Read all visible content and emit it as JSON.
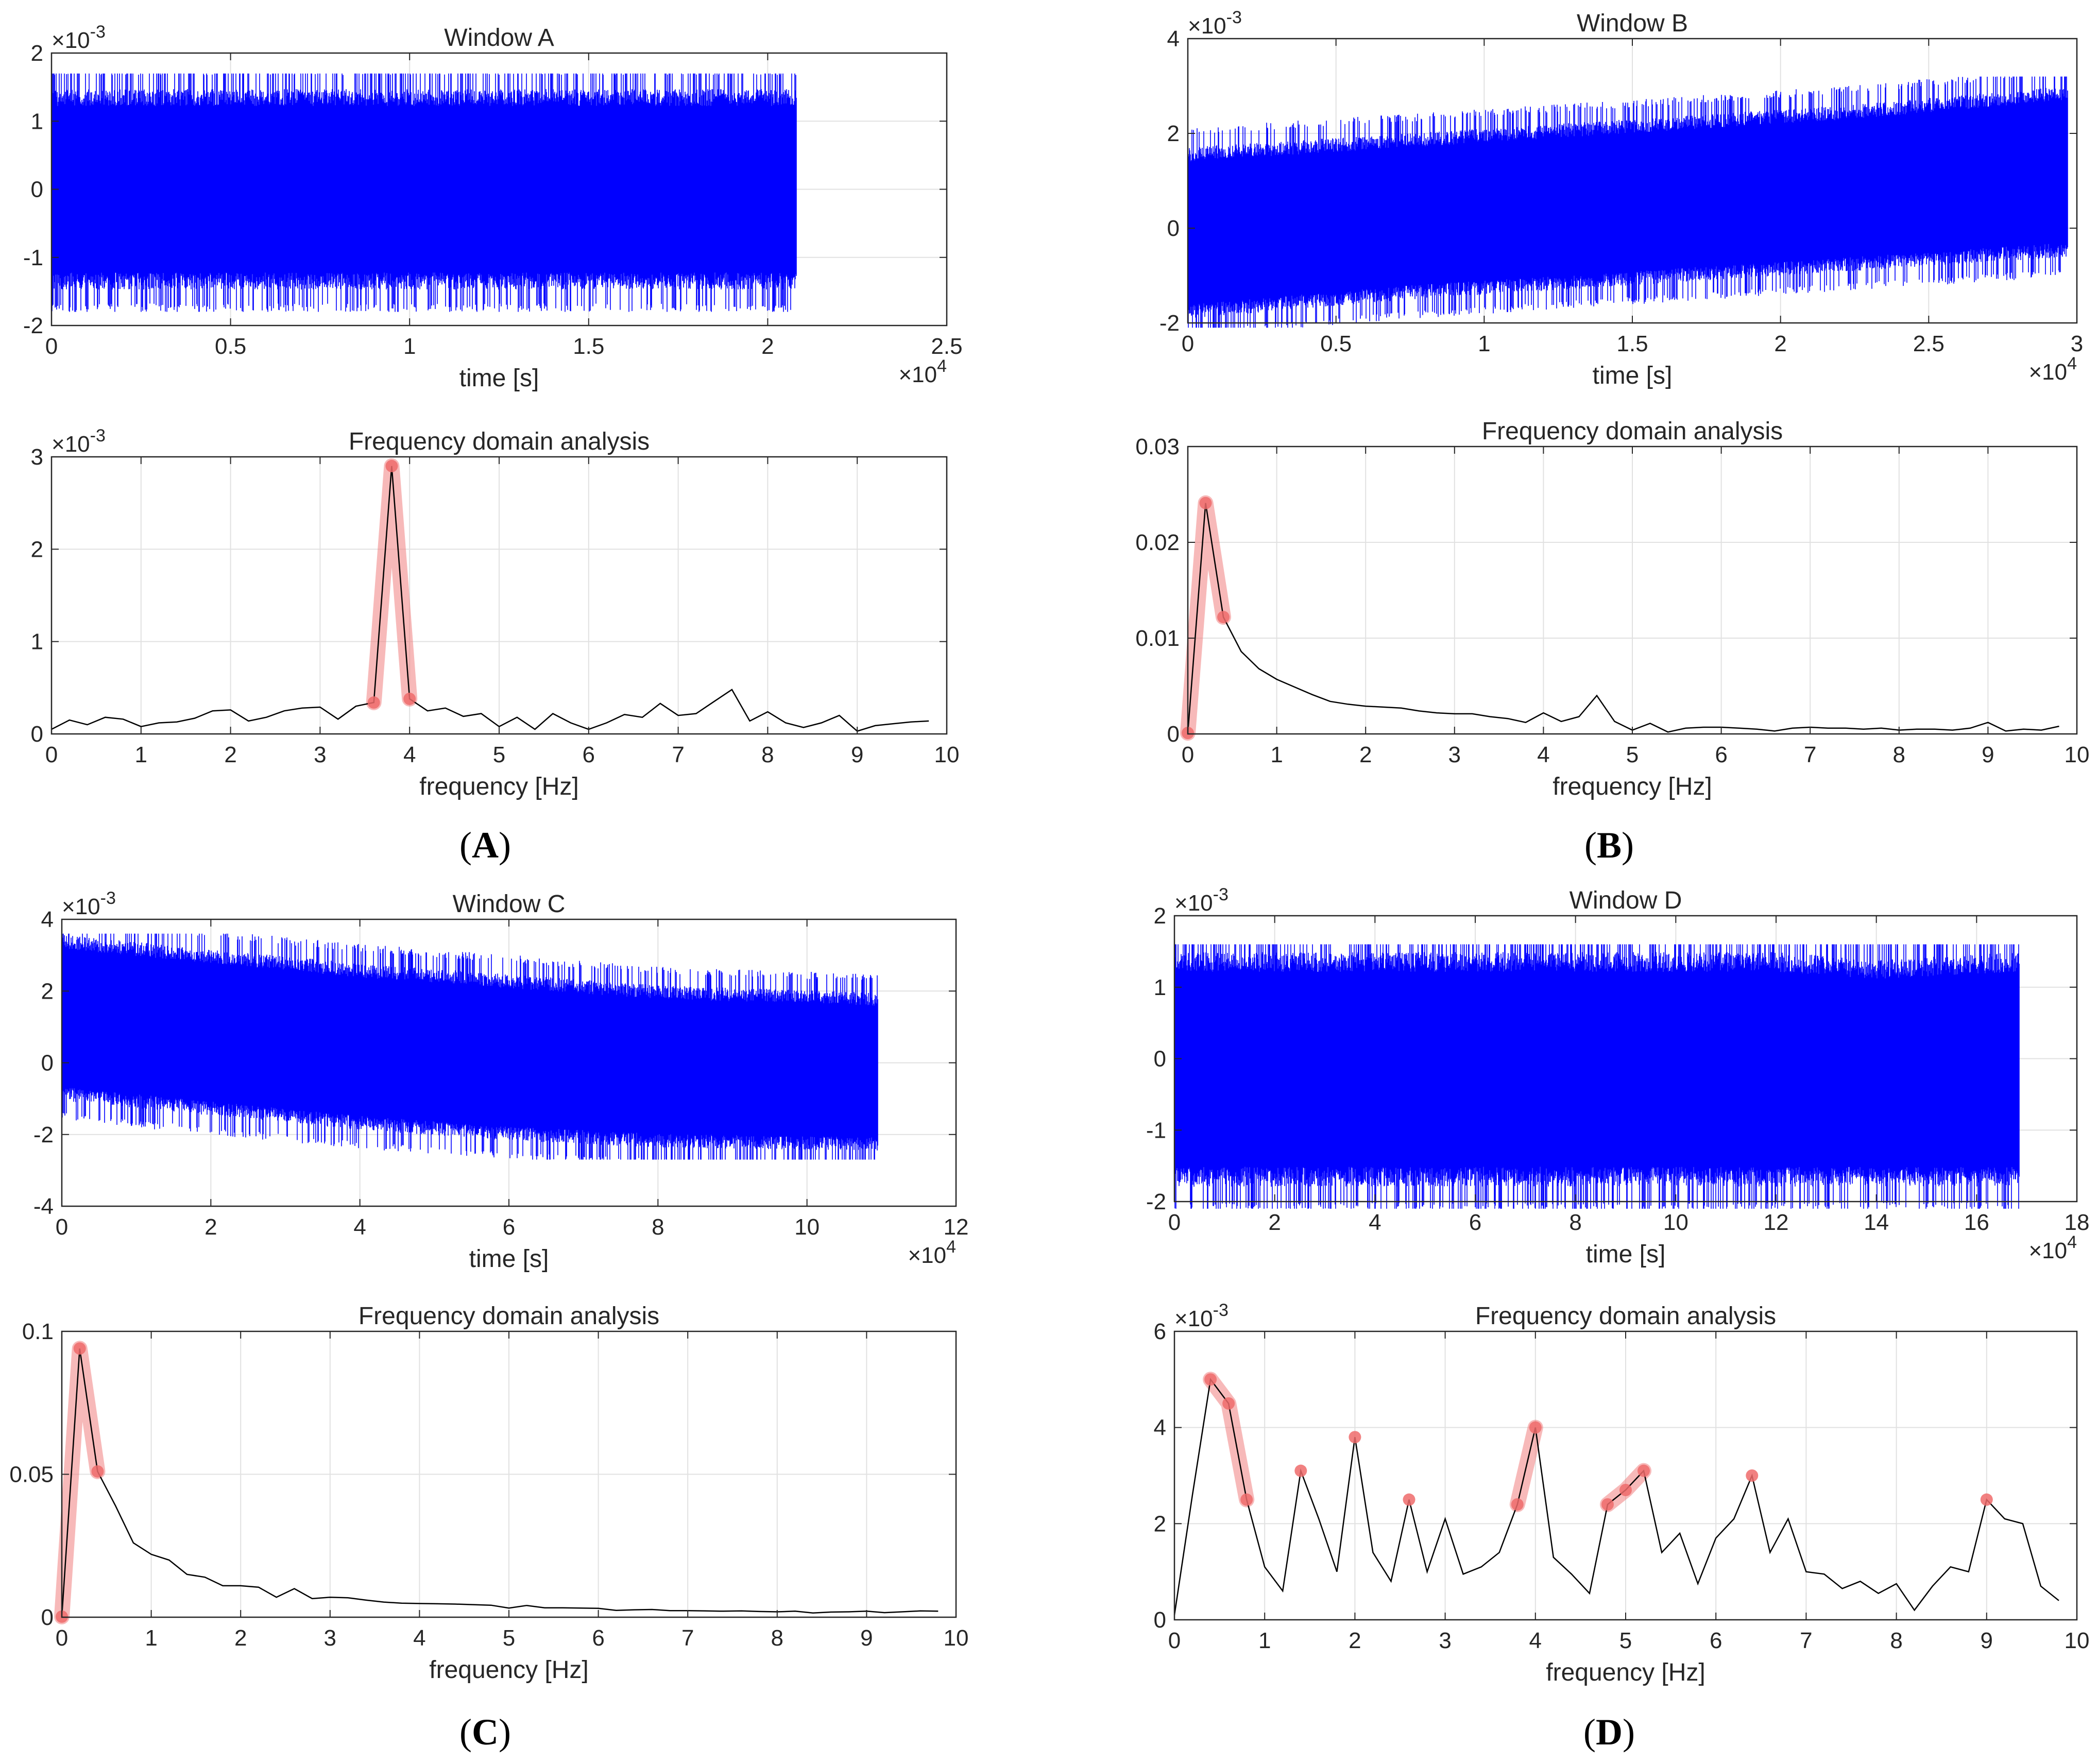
{
  "panels": [
    {
      "label": "A",
      "time_title": "Window A",
      "freq_title": "Frequency domain analysis"
    },
    {
      "label": "B",
      "time_title": "Window B",
      "freq_title": "Frequency domain analysis"
    },
    {
      "label": "C",
      "time_title": "Window C",
      "freq_title": "Frequency domain analysis"
    },
    {
      "label": "D",
      "time_title": "Window D",
      "freq_title": "Frequency domain analysis"
    }
  ],
  "colors": {
    "signal": "#0000ff",
    "spectrum": "#000000",
    "highlight_fill": "#f08080",
    "highlight_point": "#ee6b6b",
    "grid": "#e1e1e1",
    "axis": "#262626"
  },
  "chart_data": [
    {
      "panel": "A",
      "type": "area",
      "title": "Window A",
      "xlabel": "time [s]",
      "ylabel": "",
      "xlim": [
        0,
        25000
      ],
      "ylim": [
        -0.002,
        0.002
      ],
      "xticks": [
        0,
        5000,
        10000,
        15000,
        20000,
        25000
      ],
      "xtick_labels": [
        "0",
        "0.5",
        "1",
        "1.5",
        "2",
        "2.5"
      ],
      "yticks": [
        -0.002,
        -0.001,
        0,
        0.001,
        0.002
      ],
      "ytick_labels": [
        "-2",
        "-1",
        "0",
        "1",
        "2"
      ],
      "x_exponent": "×10^4",
      "y_exponent": "×10^-3",
      "signal_end": 20800,
      "envelope": {
        "x": [
          0,
          5000,
          10000,
          15000,
          20800
        ],
        "upper": [
          0.0013,
          0.0013,
          0.0013,
          0.0013,
          0.0013
        ],
        "lower": [
          -0.0013,
          -0.0013,
          -0.0013,
          -0.0013,
          -0.0013
        ],
        "peak_max": 0.0017,
        "peak_min": -0.0018
      }
    },
    {
      "panel": "A",
      "type": "line",
      "title": "Frequency domain analysis",
      "xlabel": "frequency [Hz]",
      "ylabel": "",
      "xlim": [
        0,
        10
      ],
      "ylim": [
        0,
        0.003
      ],
      "xticks": [
        0,
        1,
        2,
        3,
        4,
        5,
        6,
        7,
        8,
        9,
        10
      ],
      "xtick_labels": [
        "0",
        "1",
        "2",
        "3",
        "4",
        "5",
        "6",
        "7",
        "8",
        "9",
        "10"
      ],
      "yticks": [
        0,
        0.001,
        0.002,
        0.003
      ],
      "ytick_labels": [
        "0",
        "1",
        "2",
        "3"
      ],
      "y_exponent": "×10^-3",
      "x": [
        0,
        0.2,
        0.4,
        0.6,
        0.8,
        1.0,
        1.2,
        1.4,
        1.6,
        1.8,
        2.0,
        2.2,
        2.4,
        2.6,
        2.8,
        3.0,
        3.2,
        3.4,
        3.6,
        3.8,
        4.0,
        4.2,
        4.4,
        4.6,
        4.8,
        5.0,
        5.2,
        5.4,
        5.6,
        5.8,
        6.0,
        6.2,
        6.4,
        6.6,
        6.8,
        7.0,
        7.2,
        7.4,
        7.6,
        7.8,
        8.0,
        8.2,
        8.4,
        8.6,
        8.8,
        9.0,
        9.2,
        9.4,
        9.6,
        9.8
      ],
      "y": [
        5e-05,
        0.00015,
        0.0001,
        0.00018,
        0.00016,
        8e-05,
        0.00012,
        0.00013,
        0.00017,
        0.00025,
        0.00026,
        0.00014,
        0.00018,
        0.00025,
        0.00028,
        0.00029,
        0.00016,
        0.0003,
        0.00034,
        0.0029,
        0.00038,
        0.00025,
        0.00028,
        0.00019,
        0.00022,
        8e-05,
        0.00018,
        5e-05,
        0.00022,
        0.00012,
        5e-05,
        0.00012,
        0.00021,
        0.00018,
        0.00033,
        0.0002,
        0.00022,
        0.00035,
        0.00048,
        0.00014,
        0.00024,
        0.00012,
        7e-05,
        0.00012,
        0.0002,
        3e-05,
        9e-05,
        0.00011,
        0.00013,
        0.00014
      ],
      "highlight": [
        {
          "x": [
            3.6,
            3.8,
            4.0
          ],
          "y": [
            0.00034,
            0.0029,
            0.00038
          ]
        }
      ]
    },
    {
      "panel": "B",
      "type": "area",
      "title": "Window B",
      "xlabel": "time [s]",
      "ylabel": "",
      "xlim": [
        0,
        30000
      ],
      "ylim": [
        -0.002,
        0.004
      ],
      "xticks": [
        0,
        5000,
        10000,
        15000,
        20000,
        25000,
        30000
      ],
      "xtick_labels": [
        "0",
        "0.5",
        "1",
        "1.5",
        "2",
        "2.5",
        "3"
      ],
      "yticks": [
        -0.002,
        0,
        0.002,
        0.004
      ],
      "ytick_labels": [
        "-2",
        "0",
        "2",
        "4"
      ],
      "x_exponent": "×10^4",
      "y_exponent": "×10^-3",
      "signal_end": 29700,
      "envelope": {
        "x": [
          0,
          7500,
          15000,
          22500,
          29700
        ],
        "upper": [
          0.0015,
          0.0018,
          0.0021,
          0.0024,
          0.0028
        ],
        "lower": [
          -0.0017,
          -0.0013,
          -0.001,
          -0.0007,
          -0.0004
        ],
        "peak_max": 0.0032,
        "peak_min": -0.0021
      }
    },
    {
      "panel": "B",
      "type": "line",
      "title": "Frequency domain analysis",
      "xlabel": "frequency [Hz]",
      "ylabel": "",
      "xlim": [
        0,
        10
      ],
      "ylim": [
        0,
        0.03
      ],
      "xticks": [
        0,
        1,
        2,
        3,
        4,
        5,
        6,
        7,
        8,
        9,
        10
      ],
      "xtick_labels": [
        "0",
        "1",
        "2",
        "3",
        "4",
        "5",
        "6",
        "7",
        "8",
        "9",
        "10"
      ],
      "yticks": [
        0,
        0.01,
        0.02,
        0.03
      ],
      "ytick_labels": [
        "0",
        "0.01",
        "0.02",
        "0.03"
      ],
      "x": [
        0,
        0.2,
        0.4,
        0.6,
        0.8,
        1.0,
        1.2,
        1.4,
        1.6,
        1.8,
        2.0,
        2.2,
        2.4,
        2.6,
        2.8,
        3.0,
        3.2,
        3.4,
        3.6,
        3.8,
        4.0,
        4.2,
        4.4,
        4.6,
        4.8,
        5.0,
        5.2,
        5.4,
        5.6,
        5.8,
        6.0,
        6.2,
        6.4,
        6.6,
        6.8,
        7.0,
        7.2,
        7.4,
        7.6,
        7.8,
        8.0,
        8.2,
        8.4,
        8.6,
        8.8,
        9.0,
        9.2,
        9.4,
        9.6,
        9.8
      ],
      "y": [
        0.0001,
        0.0241,
        0.0122,
        0.0086,
        0.0068,
        0.0057,
        0.0049,
        0.0041,
        0.0034,
        0.0031,
        0.0029,
        0.0028,
        0.0027,
        0.0024,
        0.0022,
        0.0021,
        0.0021,
        0.0018,
        0.0016,
        0.0012,
        0.0022,
        0.0013,
        0.0018,
        0.004,
        0.0013,
        0.0004,
        0.0011,
        0.0002,
        0.0006,
        0.0007,
        0.0007,
        0.0006,
        0.0005,
        0.0003,
        0.0006,
        0.0007,
        0.0006,
        0.0006,
        0.0005,
        0.0006,
        0.0004,
        0.0005,
        0.0005,
        0.0004,
        0.0006,
        0.0012,
        0.0003,
        0.0005,
        0.0004,
        0.0008
      ],
      "highlight": [
        {
          "x": [
            0,
            0.2,
            0.4
          ],
          "y": [
            0.0001,
            0.0241,
            0.0122
          ]
        }
      ]
    },
    {
      "panel": "C",
      "type": "area",
      "title": "Window C",
      "xlabel": "time [s]",
      "ylabel": "",
      "xlim": [
        0,
        120000
      ],
      "ylim": [
        -0.004,
        0.004
      ],
      "xticks": [
        0,
        20000,
        40000,
        60000,
        80000,
        100000,
        120000
      ],
      "xtick_labels": [
        "0",
        "2",
        "4",
        "6",
        "8",
        "10",
        "12"
      ],
      "yticks": [
        -0.004,
        -0.002,
        0,
        0.002,
        0.004
      ],
      "ytick_labels": [
        "-4",
        "-2",
        "0",
        "2",
        "4"
      ],
      "x_exponent": "×10^4",
      "y_exponent": "×10^-3",
      "signal_end": 109500,
      "envelope": {
        "x": [
          0,
          20000,
          40000,
          60000,
          80000,
          109500
        ],
        "upper": [
          0.0033,
          0.0029,
          0.0025,
          0.0022,
          0.0019,
          0.0017
        ],
        "lower": [
          -0.0008,
          -0.0012,
          -0.0016,
          -0.0019,
          -0.0021,
          -0.0022
        ],
        "peak_max": 0.0036,
        "peak_min": -0.0027
      }
    },
    {
      "panel": "C",
      "type": "line",
      "title": "Frequency domain analysis",
      "xlabel": "frequency [Hz]",
      "ylabel": "",
      "xlim": [
        0,
        10
      ],
      "ylim": [
        0,
        0.1
      ],
      "xticks": [
        0,
        1,
        2,
        3,
        4,
        5,
        6,
        7,
        8,
        9,
        10
      ],
      "xtick_labels": [
        "0",
        "1",
        "2",
        "3",
        "4",
        "5",
        "6",
        "7",
        "8",
        "9",
        "10"
      ],
      "yticks": [
        0,
        0.05,
        0.1
      ],
      "ytick_labels": [
        "0",
        "0.05",
        "0.1"
      ],
      "x": [
        0,
        0.2,
        0.4,
        0.6,
        0.8,
        1.0,
        1.2,
        1.4,
        1.6,
        1.8,
        2.0,
        2.2,
        2.4,
        2.6,
        2.8,
        3.0,
        3.2,
        3.4,
        3.6,
        3.8,
        4.0,
        4.2,
        4.4,
        4.6,
        4.8,
        5.0,
        5.2,
        5.4,
        5.6,
        5.8,
        6.0,
        6.2,
        6.4,
        6.6,
        6.8,
        7.0,
        7.2,
        7.4,
        7.6,
        7.8,
        8.0,
        8.2,
        8.4,
        8.6,
        8.8,
        9.0,
        9.2,
        9.4,
        9.6,
        9.8
      ],
      "y": [
        0.0002,
        0.094,
        0.051,
        0.039,
        0.026,
        0.022,
        0.02,
        0.015,
        0.014,
        0.011,
        0.011,
        0.0105,
        0.007,
        0.01,
        0.0065,
        0.007,
        0.0068,
        0.006,
        0.0053,
        0.0049,
        0.0048,
        0.0047,
        0.0046,
        0.0044,
        0.0042,
        0.0032,
        0.0041,
        0.0033,
        0.0033,
        0.0032,
        0.0031,
        0.0024,
        0.0026,
        0.0027,
        0.0023,
        0.0023,
        0.0022,
        0.0021,
        0.0022,
        0.002,
        0.0019,
        0.0021,
        0.0015,
        0.0018,
        0.0019,
        0.0021,
        0.0016,
        0.0019,
        0.0022,
        0.0021
      ],
      "highlight": [
        {
          "x": [
            0,
            0.2,
            0.4
          ],
          "y": [
            0.0002,
            0.094,
            0.051
          ]
        }
      ]
    },
    {
      "panel": "D",
      "type": "area",
      "title": "Window D",
      "xlabel": "time [s]",
      "ylabel": "",
      "xlim": [
        0,
        180000
      ],
      "ylim": [
        -0.002,
        0.002
      ],
      "xticks": [
        0,
        20000,
        40000,
        60000,
        80000,
        100000,
        120000,
        140000,
        160000,
        180000
      ],
      "xtick_labels": [
        "0",
        "2",
        "4",
        "6",
        "8",
        "10",
        "12",
        "14",
        "16",
        "18"
      ],
      "yticks": [
        -0.002,
        -0.001,
        0,
        0.001,
        0.002
      ],
      "ytick_labels": [
        "-2",
        "-1",
        "0",
        "1",
        "2"
      ],
      "x_exponent": "×10^4",
      "y_exponent": "×10^-3",
      "signal_end": 168500,
      "envelope": {
        "x": [
          0,
          40000,
          80000,
          120000,
          140000,
          168500
        ],
        "upper": [
          0.0013,
          0.0013,
          0.0013,
          0.0013,
          0.0012,
          0.0013
        ],
        "lower": [
          -0.0016,
          -0.0016,
          -0.0016,
          -0.0016,
          -0.0016,
          -0.0016
        ],
        "peak_max": 0.0016,
        "peak_min": -0.0021
      }
    },
    {
      "panel": "D",
      "type": "line",
      "title": "Frequency domain analysis",
      "xlabel": "frequency [Hz]",
      "ylabel": "",
      "xlim": [
        0,
        10
      ],
      "ylim": [
        0,
        0.006
      ],
      "xticks": [
        0,
        1,
        2,
        3,
        4,
        5,
        6,
        7,
        8,
        9,
        10
      ],
      "xtick_labels": [
        "0",
        "1",
        "2",
        "3",
        "4",
        "5",
        "6",
        "7",
        "8",
        "9",
        "10"
      ],
      "yticks": [
        0,
        0.002,
        0.004,
        0.006
      ],
      "ytick_labels": [
        "0",
        "2",
        "4",
        "6"
      ],
      "y_exponent": "×10^-3",
      "x": [
        0,
        0.2,
        0.4,
        0.6,
        0.8,
        1.0,
        1.2,
        1.4,
        1.6,
        1.8,
        2.0,
        2.2,
        2.4,
        2.6,
        2.8,
        3.0,
        3.2,
        3.4,
        3.6,
        3.8,
        4.0,
        4.2,
        4.4,
        4.6,
        4.8,
        5.0,
        5.2,
        5.4,
        5.6,
        5.8,
        6.0,
        6.2,
        6.4,
        6.6,
        6.8,
        7.0,
        7.2,
        7.4,
        7.6,
        7.8,
        8.0,
        8.2,
        8.4,
        8.6,
        8.8,
        9.0,
        9.2,
        9.4,
        9.6,
        9.8
      ],
      "y": [
        0.0001,
        0.0026,
        0.005,
        0.0045,
        0.0025,
        0.0011,
        0.0006,
        0.0031,
        0.0021,
        0.001,
        0.0038,
        0.0014,
        0.0008,
        0.0025,
        0.001,
        0.0021,
        0.00095,
        0.0011,
        0.0014,
        0.0024,
        0.004,
        0.0013,
        0.00095,
        0.00055,
        0.0024,
        0.0027,
        0.0031,
        0.0014,
        0.0018,
        0.00075,
        0.0017,
        0.0021,
        0.003,
        0.0014,
        0.0021,
        0.001,
        0.00095,
        0.00065,
        0.0008,
        0.00055,
        0.00075,
        0.0002,
        0.0007,
        0.0011,
        0.001,
        0.0025,
        0.0021,
        0.002,
        0.0007,
        0.0004
      ],
      "highlight": [
        {
          "x": [
            0.4,
            0.6,
            0.8
          ],
          "y": [
            0.005,
            0.0045,
            0.0025
          ]
        },
        {
          "x": [
            3.8,
            4.0
          ],
          "y": [
            0.0024,
            0.004
          ]
        },
        {
          "x": [
            4.8,
            5.0,
            5.2
          ],
          "y": [
            0.0024,
            0.0027,
            0.0031
          ]
        }
      ],
      "highlight_points": {
        "x": [
          1.4,
          2.0,
          2.6,
          6.4,
          9.0
        ],
        "y": [
          0.0031,
          0.0038,
          0.0025,
          0.003,
          0.0025
        ]
      }
    }
  ]
}
